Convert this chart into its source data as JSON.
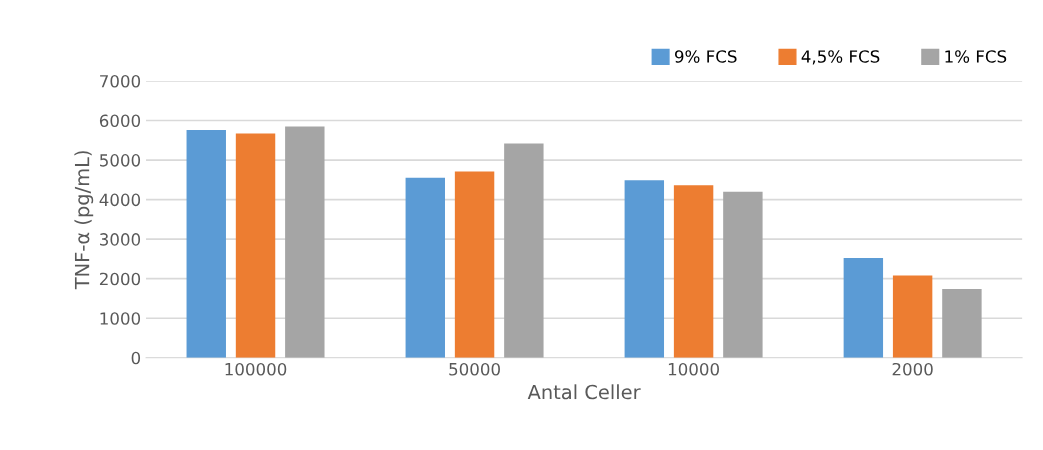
{
  "chart_data": {
    "type": "bar",
    "xlabel": "Antal Celler",
    "ylabel": "TNF-α (pg/mL)",
    "categories": [
      "100000",
      "50000",
      "10000",
      "2000"
    ],
    "series": [
      {
        "name": "9% FCS",
        "color": "#5b9bd5",
        "values": [
          5760,
          4550,
          4490,
          2520
        ]
      },
      {
        "name": "4,5% FCS",
        "color": "#ed7d31",
        "values": [
          5670,
          4710,
          4360,
          2080
        ]
      },
      {
        "name": "1% FCS",
        "color": "#a5a5a5",
        "values": [
          5850,
          5420,
          4200,
          1740
        ]
      }
    ],
    "ylim": [
      0,
      7000
    ],
    "yticks": [
      0,
      1000,
      2000,
      3000,
      4000,
      5000,
      6000,
      7000
    ],
    "grid": "y",
    "legend": "top right"
  }
}
